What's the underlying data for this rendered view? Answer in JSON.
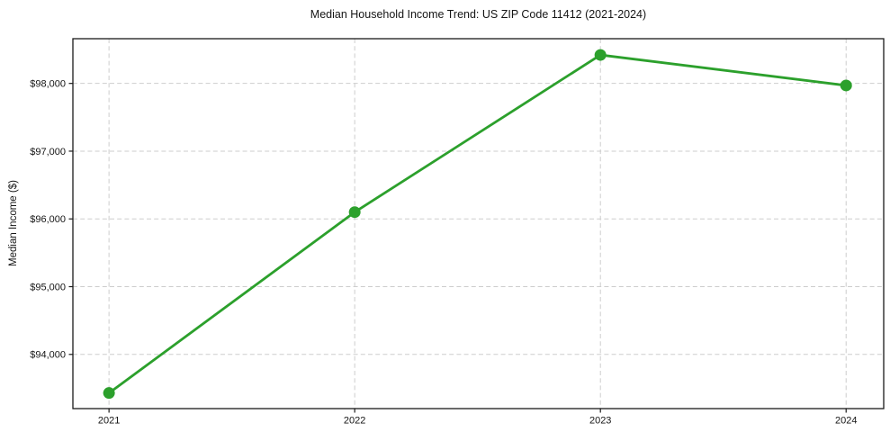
{
  "chart_data": {
    "type": "line",
    "title": "Median Household Income Trend: US ZIP Code 11412 (2021-2024)",
    "xlabel": "",
    "ylabel": "Median Income ($)",
    "x": [
      2021,
      2022,
      2023,
      2024
    ],
    "series": [
      {
        "name": "Median Household Income",
        "values": [
          93430,
          96100,
          98420,
          97970
        ]
      }
    ],
    "x_tick_labels": [
      "2021",
      "2022",
      "2023",
      "2024"
    ],
    "y_ticks": [
      94000,
      95000,
      96000,
      97000,
      98000
    ],
    "y_tick_labels": [
      "$94,000",
      "$95,000",
      "$96,000",
      "$97,000",
      "$98,000"
    ],
    "xlim": [
      2020.853,
      2024.153
    ],
    "ylim": [
      93200,
      98660
    ],
    "grid": true,
    "grid_style": "dashed",
    "legend": "none",
    "line_color": "#2ca02c",
    "marker_color": "#2ca02c",
    "grid_color": "#cdcdcd",
    "spine_color": "#1a1a1a",
    "marker": "circle"
  }
}
